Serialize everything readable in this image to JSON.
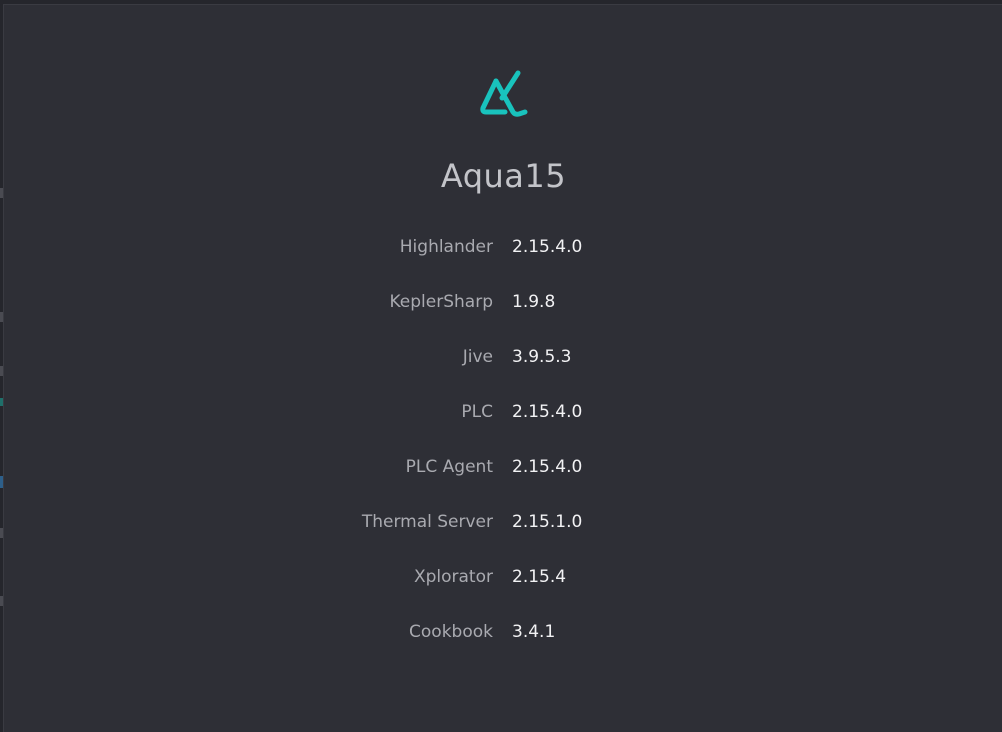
{
  "app": {
    "title": "Aqua15",
    "logo_icon": "aqua-logo-icon",
    "accent_color": "#19c3bd"
  },
  "versions": [
    {
      "name": "Highlander",
      "version": "2.15.4.0"
    },
    {
      "name": "KeplerSharp",
      "version": "1.9.8"
    },
    {
      "name": "Jive",
      "version": "3.9.5.3"
    },
    {
      "name": "PLC",
      "version": "2.15.4.0"
    },
    {
      "name": "PLC Agent",
      "version": "2.15.4.0"
    },
    {
      "name": "Thermal Server",
      "version": "2.15.1.0"
    },
    {
      "name": "Xplorator",
      "version": "2.15.4"
    },
    {
      "name": "Cookbook",
      "version": "3.4.1"
    }
  ]
}
